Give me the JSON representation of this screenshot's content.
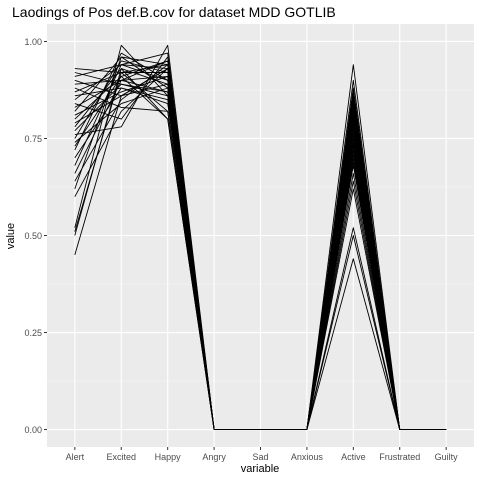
{
  "chart_data": {
    "type": "line",
    "title": "Laodings of Pos def.B.cov for dataset MDD GOTLIB",
    "xlabel": "variable",
    "ylabel": "value",
    "categories": [
      "Alert",
      "Excited",
      "Happy",
      "Angry",
      "Sad",
      "Anxious",
      "Active",
      "Frustrated",
      "Guilty"
    ],
    "ylim": [
      0,
      1
    ],
    "yticks": [
      0.0,
      0.25,
      0.5,
      0.75,
      1.0
    ],
    "ytick_labels": [
      "0.00",
      "0.25",
      "0.50",
      "0.75",
      "1.00"
    ],
    "grid": true,
    "legend": "none",
    "line_color": "#000000",
    "panel_color": "#ebebeb",
    "series": [
      {
        "values": [
          0.45,
          0.86,
          0.93,
          0,
          0,
          0,
          0.44,
          0,
          0
        ]
      },
      {
        "values": [
          0.5,
          0.93,
          0.8,
          0,
          0,
          0,
          0.52,
          0,
          0
        ]
      },
      {
        "values": [
          0.51,
          0.92,
          0.82,
          0,
          0,
          0,
          0.5,
          0,
          0
        ]
      },
      {
        "values": [
          0.52,
          0.99,
          0.86,
          0,
          0,
          0,
          0.94,
          0,
          0
        ]
      },
      {
        "values": [
          0.6,
          0.82,
          0.93,
          0,
          0,
          0,
          0.62,
          0,
          0
        ]
      },
      {
        "values": [
          0.62,
          0.96,
          0.88,
          0,
          0,
          0,
          0.7,
          0,
          0
        ]
      },
      {
        "values": [
          0.64,
          0.85,
          0.94,
          0,
          0,
          0,
          0.74,
          0,
          0
        ]
      },
      {
        "values": [
          0.66,
          0.9,
          0.91,
          0,
          0,
          0,
          0.66,
          0,
          0
        ]
      },
      {
        "values": [
          0.68,
          0.94,
          0.97,
          0,
          0,
          0,
          0.8,
          0,
          0
        ]
      },
      {
        "values": [
          0.7,
          0.88,
          0.84,
          0,
          0,
          0,
          0.78,
          0,
          0
        ]
      },
      {
        "values": [
          0.72,
          0.97,
          0.9,
          0,
          0,
          0,
          0.86,
          0,
          0
        ]
      },
      {
        "values": [
          0.73,
          0.91,
          0.95,
          0,
          0,
          0,
          0.72,
          0,
          0
        ]
      },
      {
        "values": [
          0.74,
          0.84,
          0.88,
          0,
          0,
          0,
          0.82,
          0,
          0
        ]
      },
      {
        "values": [
          0.75,
          0.95,
          0.92,
          0,
          0,
          0,
          0.76,
          0,
          0
        ]
      },
      {
        "values": [
          0.76,
          0.78,
          0.99,
          0,
          0,
          0,
          0.88,
          0,
          0
        ]
      },
      {
        "values": [
          0.77,
          0.89,
          0.86,
          0,
          0,
          0,
          0.68,
          0,
          0
        ]
      },
      {
        "values": [
          0.78,
          0.93,
          0.89,
          0,
          0,
          0,
          0.84,
          0,
          0
        ]
      },
      {
        "values": [
          0.79,
          0.86,
          0.93,
          0,
          0,
          0,
          0.79,
          0,
          0
        ]
      },
      {
        "values": [
          0.8,
          0.91,
          0.8,
          0,
          0,
          0,
          0.73,
          0,
          0
        ]
      },
      {
        "values": [
          0.81,
          0.87,
          0.91,
          0,
          0,
          0,
          0.9,
          0,
          0
        ]
      },
      {
        "values": [
          0.82,
          0.96,
          0.94,
          0,
          0,
          0,
          0.81,
          0,
          0
        ]
      },
      {
        "values": [
          0.83,
          0.9,
          0.87,
          0,
          0,
          0,
          0.64,
          0,
          0
        ]
      },
      {
        "values": [
          0.84,
          0.8,
          0.96,
          0,
          0,
          0,
          0.77,
          0,
          0
        ]
      },
      {
        "values": [
          0.85,
          0.94,
          0.9,
          0,
          0,
          0,
          0.85,
          0,
          0
        ]
      },
      {
        "values": [
          0.86,
          0.88,
          0.85,
          0,
          0,
          0,
          0.71,
          0,
          0
        ]
      },
      {
        "values": [
          0.87,
          0.92,
          0.92,
          0,
          0,
          0,
          0.87,
          0,
          0
        ]
      },
      {
        "values": [
          0.88,
          0.83,
          0.82,
          0,
          0,
          0,
          0.75,
          0,
          0
        ]
      },
      {
        "values": [
          0.89,
          0.9,
          0.95,
          0,
          0,
          0,
          0.83,
          0,
          0
        ]
      },
      {
        "values": [
          0.9,
          0.86,
          0.89,
          0,
          0,
          0,
          0.69,
          0,
          0
        ]
      },
      {
        "values": [
          0.91,
          0.94,
          0.93,
          0,
          0,
          0,
          0.8,
          0,
          0
        ]
      },
      {
        "values": [
          0.92,
          0.89,
          0.87,
          0,
          0,
          0,
          0.74,
          0,
          0
        ]
      },
      {
        "values": [
          0.93,
          0.92,
          0.94,
          0,
          0,
          0,
          0.86,
          0,
          0
        ]
      }
    ]
  }
}
